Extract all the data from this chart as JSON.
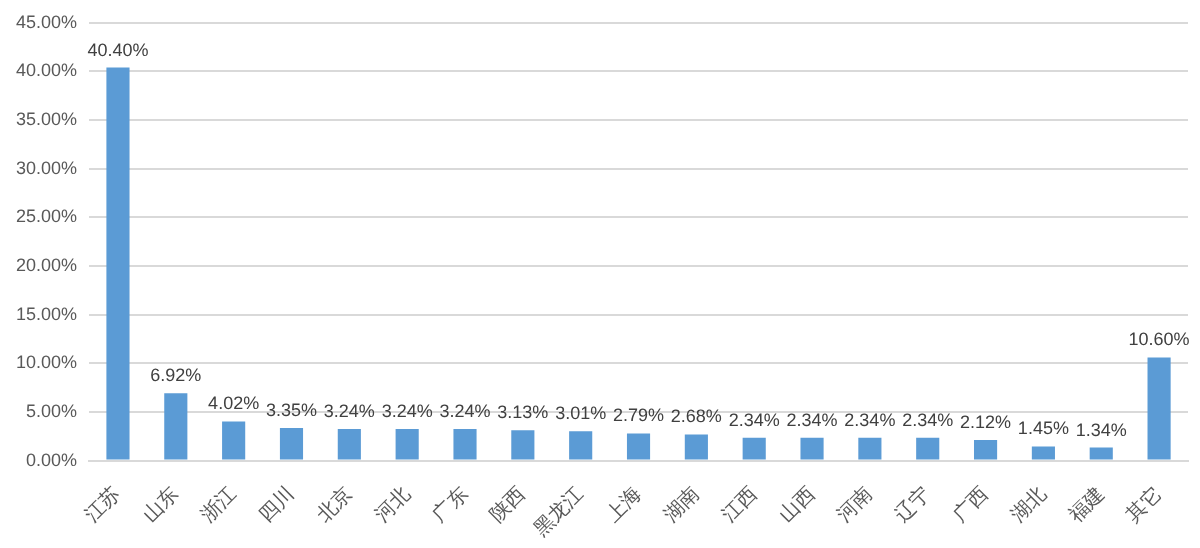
{
  "chart_data": {
    "type": "bar",
    "categories": [
      "江苏",
      "山东",
      "浙江",
      "四川",
      "北京",
      "河北",
      "广东",
      "陕西",
      "黑龙江",
      "上海",
      "湖南",
      "江西",
      "山西",
      "河南",
      "辽宁",
      "广西",
      "湖北",
      "福建",
      "其它"
    ],
    "values": [
      40.4,
      6.92,
      4.02,
      3.35,
      3.24,
      3.24,
      3.24,
      3.13,
      3.01,
      2.79,
      2.68,
      2.34,
      2.34,
      2.34,
      2.34,
      2.12,
      1.45,
      1.34,
      10.6
    ],
    "value_labels": [
      "40.40%",
      "6.92%",
      "4.02%",
      "3.35%",
      "3.24%",
      "3.24%",
      "3.24%",
      "3.13%",
      "3.01%",
      "2.79%",
      "2.68%",
      "2.34%",
      "2.34%",
      "2.34%",
      "2.34%",
      "2.12%",
      "1.45%",
      "1.34%",
      "10.60%"
    ],
    "color": "#5b9bd5",
    "ylim": [
      0,
      45
    ],
    "yticks": [
      {
        "value": 0,
        "label": "0.00%"
      },
      {
        "value": 5,
        "label": "5.00%"
      },
      {
        "value": 10,
        "label": "10.00%"
      },
      {
        "value": 15,
        "label": "15.00%"
      },
      {
        "value": 20,
        "label": "20.00%"
      },
      {
        "value": 25,
        "label": "25.00%"
      },
      {
        "value": 30,
        "label": "30.00%"
      },
      {
        "value": 35,
        "label": "35.00%"
      },
      {
        "value": 40,
        "label": "40.00%"
      },
      {
        "value": 45,
        "label": "45.00%"
      }
    ],
    "grid": "y",
    "legend": false
  }
}
